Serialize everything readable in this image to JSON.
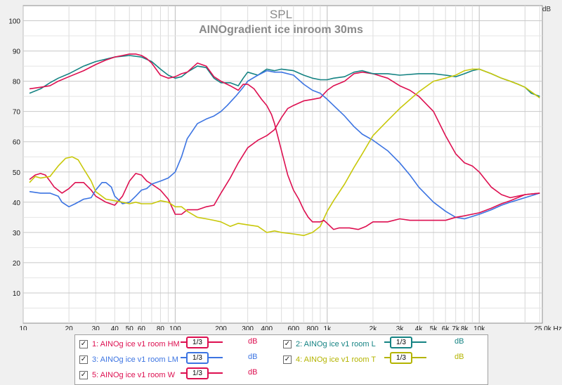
{
  "chart_data": {
    "type": "line",
    "title": "SPL",
    "subtitle": "AINOgradient ice inroom 30ms",
    "ylabel": "dB",
    "xlabel": "",
    "x_scale": "log",
    "xlim": [
      10,
      26000
    ],
    "ylim": [
      0,
      105
    ],
    "grid": true,
    "yticks": [
      10,
      20,
      30,
      40,
      50,
      60,
      70,
      80,
      90,
      100
    ],
    "xtick_values": [
      10,
      20,
      30,
      40,
      50,
      60,
      80,
      100,
      200,
      300,
      400,
      600,
      800,
      1000,
      2000,
      3000,
      4000,
      5000,
      6000,
      7000,
      8000,
      10000,
      25000
    ],
    "xtick_labels": [
      "10",
      "20",
      "30",
      "40",
      "50",
      "60",
      "80",
      "100",
      "200",
      "300",
      "400",
      "600",
      "800",
      "1k",
      "2k",
      "3k",
      "4k",
      "5k",
      "6k",
      "7k",
      "8k",
      "10k",
      "25,0k Hz"
    ],
    "series": [
      {
        "name": "1: AINOg ice v1 room HM",
        "color": "#dd0f50",
        "points": [
          [
            11,
            47.5
          ],
          [
            12,
            49
          ],
          [
            13,
            49.5
          ],
          [
            14,
            49
          ],
          [
            15,
            47
          ],
          [
            16,
            45
          ],
          [
            18,
            43
          ],
          [
            20,
            44.5
          ],
          [
            22,
            46.5
          ],
          [
            25,
            46.5
          ],
          [
            28,
            44
          ],
          [
            30,
            42
          ],
          [
            35,
            40
          ],
          [
            40,
            39
          ],
          [
            45,
            42
          ],
          [
            50,
            47
          ],
          [
            55,
            49.5
          ],
          [
            60,
            49
          ],
          [
            65,
            47
          ],
          [
            70,
            46
          ],
          [
            80,
            44
          ],
          [
            90,
            41
          ],
          [
            100,
            36
          ],
          [
            110,
            36
          ],
          [
            120,
            37.5
          ],
          [
            140,
            37.5
          ],
          [
            160,
            38.5
          ],
          [
            180,
            39
          ],
          [
            200,
            43
          ],
          [
            230,
            48
          ],
          [
            260,
            53
          ],
          [
            300,
            58
          ],
          [
            350,
            60.5
          ],
          [
            400,
            62
          ],
          [
            450,
            64
          ],
          [
            500,
            68
          ],
          [
            550,
            71
          ],
          [
            600,
            72
          ],
          [
            700,
            73.5
          ],
          [
            800,
            74
          ],
          [
            900,
            74.5
          ],
          [
            1000,
            77
          ],
          [
            1100,
            78.5
          ],
          [
            1300,
            80
          ],
          [
            1500,
            82.5
          ],
          [
            1700,
            83
          ],
          [
            2000,
            82.5
          ],
          [
            2500,
            81
          ],
          [
            3000,
            78.5
          ],
          [
            3500,
            77
          ],
          [
            4000,
            75
          ],
          [
            5000,
            70
          ],
          [
            6000,
            62
          ],
          [
            7000,
            56
          ],
          [
            8000,
            53
          ],
          [
            9000,
            52
          ],
          [
            10000,
            50
          ],
          [
            12000,
            45
          ],
          [
            14000,
            42.5
          ],
          [
            16000,
            41.5
          ],
          [
            20000,
            42.5
          ],
          [
            25000,
            43
          ]
        ]
      },
      {
        "name": "2: AINOg ice v1 room L",
        "color": "#158383",
        "points": [
          [
            11,
            76
          ],
          [
            13,
            77.5
          ],
          [
            15,
            79.5
          ],
          [
            17,
            81
          ],
          [
            20,
            82.5
          ],
          [
            25,
            85
          ],
          [
            30,
            86.5
          ],
          [
            40,
            88
          ],
          [
            50,
            88.5
          ],
          [
            60,
            88
          ],
          [
            70,
            86.5
          ],
          [
            80,
            84
          ],
          [
            90,
            82
          ],
          [
            100,
            81
          ],
          [
            110,
            81.5
          ],
          [
            120,
            83
          ],
          [
            140,
            85
          ],
          [
            160,
            84.5
          ],
          [
            180,
            81
          ],
          [
            200,
            79.5
          ],
          [
            230,
            79.5
          ],
          [
            260,
            78.5
          ],
          [
            280,
            81
          ],
          [
            300,
            83
          ],
          [
            350,
            82
          ],
          [
            400,
            84
          ],
          [
            450,
            83.5
          ],
          [
            500,
            84
          ],
          [
            600,
            83.5
          ],
          [
            700,
            82
          ],
          [
            800,
            81
          ],
          [
            900,
            80.5
          ],
          [
            1000,
            80.5
          ],
          [
            1100,
            81
          ],
          [
            1300,
            81.5
          ],
          [
            1500,
            83
          ],
          [
            1700,
            83.5
          ],
          [
            2000,
            82.5
          ],
          [
            2500,
            82.5
          ],
          [
            3000,
            82
          ],
          [
            4000,
            82.5
          ],
          [
            5000,
            82.5
          ],
          [
            6000,
            82
          ],
          [
            7000,
            81.5
          ],
          [
            8000,
            82.5
          ],
          [
            9000,
            83.5
          ],
          [
            10000,
            84
          ],
          [
            12000,
            82.5
          ],
          [
            14000,
            81
          ],
          [
            16000,
            80
          ],
          [
            18000,
            79
          ],
          [
            20000,
            78
          ],
          [
            22000,
            76
          ],
          [
            25000,
            75
          ]
        ]
      },
      {
        "name": "3: AINOg ice v1 room LM",
        "color": "#3c74e2",
        "points": [
          [
            11,
            43.5
          ],
          [
            13,
            43
          ],
          [
            15,
            43
          ],
          [
            17,
            42
          ],
          [
            18,
            40
          ],
          [
            20,
            38.5
          ],
          [
            22,
            39.5
          ],
          [
            25,
            41
          ],
          [
            28,
            41.5
          ],
          [
            30,
            44
          ],
          [
            33,
            46.5
          ],
          [
            35,
            46.5
          ],
          [
            38,
            45
          ],
          [
            40,
            42
          ],
          [
            45,
            39.5
          ],
          [
            50,
            40
          ],
          [
            55,
            42
          ],
          [
            60,
            44
          ],
          [
            65,
            44.5
          ],
          [
            70,
            46
          ],
          [
            80,
            47
          ],
          [
            90,
            48
          ],
          [
            100,
            50
          ],
          [
            110,
            55
          ],
          [
            120,
            61
          ],
          [
            140,
            66
          ],
          [
            160,
            67.5
          ],
          [
            180,
            68.5
          ],
          [
            200,
            70
          ],
          [
            220,
            72
          ],
          [
            250,
            75
          ],
          [
            280,
            78
          ],
          [
            300,
            80
          ],
          [
            350,
            82
          ],
          [
            400,
            83.5
          ],
          [
            450,
            83
          ],
          [
            500,
            83
          ],
          [
            600,
            82
          ],
          [
            700,
            79
          ],
          [
            800,
            77
          ],
          [
            900,
            76
          ],
          [
            1000,
            74
          ],
          [
            1100,
            72
          ],
          [
            1300,
            68.5
          ],
          [
            1500,
            65
          ],
          [
            1700,
            62.5
          ],
          [
            2000,
            60.5
          ],
          [
            2500,
            57
          ],
          [
            3000,
            53
          ],
          [
            3500,
            49
          ],
          [
            4000,
            45
          ],
          [
            5000,
            40
          ],
          [
            6000,
            37
          ],
          [
            7000,
            35
          ],
          [
            8000,
            34.5
          ],
          [
            10000,
            36
          ],
          [
            12000,
            37.5
          ],
          [
            14000,
            39
          ],
          [
            16000,
            40
          ],
          [
            20000,
            41.5
          ],
          [
            25000,
            43
          ]
        ]
      },
      {
        "name": "4: AINOg ice v1 room T",
        "color": "#c8c80a",
        "points": [
          [
            11,
            46.5
          ],
          [
            12,
            48.5
          ],
          [
            13,
            48
          ],
          [
            15,
            48.5
          ],
          [
            17,
            52
          ],
          [
            19,
            54.5
          ],
          [
            21,
            55
          ],
          [
            23,
            54
          ],
          [
            25,
            51
          ],
          [
            28,
            47
          ],
          [
            30,
            43.5
          ],
          [
            35,
            41
          ],
          [
            40,
            40.5
          ],
          [
            45,
            40
          ],
          [
            50,
            39.5
          ],
          [
            55,
            40
          ],
          [
            60,
            39.5
          ],
          [
            70,
            39.5
          ],
          [
            80,
            40.5
          ],
          [
            90,
            40
          ],
          [
            100,
            38.5
          ],
          [
            110,
            38.5
          ],
          [
            120,
            37
          ],
          [
            140,
            35
          ],
          [
            160,
            34.5
          ],
          [
            180,
            34
          ],
          [
            200,
            33.5
          ],
          [
            230,
            32
          ],
          [
            260,
            33
          ],
          [
            300,
            32.5
          ],
          [
            350,
            32
          ],
          [
            400,
            30
          ],
          [
            450,
            30.5
          ],
          [
            500,
            30
          ],
          [
            600,
            29.5
          ],
          [
            700,
            29
          ],
          [
            800,
            30
          ],
          [
            900,
            32
          ],
          [
            1000,
            37
          ],
          [
            1100,
            40.5
          ],
          [
            1300,
            46
          ],
          [
            1500,
            51.5
          ],
          [
            1700,
            56
          ],
          [
            2000,
            62
          ],
          [
            2500,
            67
          ],
          [
            3000,
            71
          ],
          [
            4000,
            76.5
          ],
          [
            5000,
            80
          ],
          [
            6000,
            81
          ],
          [
            7000,
            82
          ],
          [
            8000,
            83.5
          ],
          [
            9000,
            84
          ],
          [
            10000,
            84
          ],
          [
            12000,
            82.5
          ],
          [
            14000,
            81
          ],
          [
            16000,
            80
          ],
          [
            18000,
            79
          ],
          [
            20000,
            78
          ],
          [
            22000,
            76.5
          ],
          [
            25000,
            74.5
          ]
        ]
      },
      {
        "name": "5: AINOg ice v1 room W",
        "color": "#dd0f50",
        "points": [
          [
            11,
            77.5
          ],
          [
            13,
            78
          ],
          [
            15,
            78.5
          ],
          [
            17,
            80
          ],
          [
            20,
            81.5
          ],
          [
            25,
            83.5
          ],
          [
            30,
            85.5
          ],
          [
            35,
            87
          ],
          [
            40,
            88
          ],
          [
            45,
            88.5
          ],
          [
            50,
            89
          ],
          [
            55,
            89
          ],
          [
            60,
            88.5
          ],
          [
            65,
            87.5
          ],
          [
            70,
            86
          ],
          [
            80,
            82
          ],
          [
            90,
            81
          ],
          [
            100,
            81.5
          ],
          [
            110,
            82.5
          ],
          [
            120,
            83
          ],
          [
            140,
            86
          ],
          [
            160,
            85
          ],
          [
            180,
            81.5
          ],
          [
            200,
            80
          ],
          [
            230,
            78.5
          ],
          [
            260,
            77
          ],
          [
            280,
            79
          ],
          [
            300,
            79
          ],
          [
            330,
            77.5
          ],
          [
            370,
            74
          ],
          [
            400,
            72
          ],
          [
            430,
            69
          ],
          [
            450,
            66
          ],
          [
            500,
            57
          ],
          [
            550,
            49
          ],
          [
            600,
            44
          ],
          [
            650,
            41
          ],
          [
            700,
            37.5
          ],
          [
            750,
            35
          ],
          [
            800,
            33.5
          ],
          [
            850,
            33.5
          ],
          [
            900,
            33.5
          ],
          [
            950,
            34
          ],
          [
            1000,
            33
          ],
          [
            1100,
            31
          ],
          [
            1200,
            31.5
          ],
          [
            1400,
            31.5
          ],
          [
            1600,
            31
          ],
          [
            1800,
            32
          ],
          [
            2000,
            33.5
          ],
          [
            2500,
            33.5
          ],
          [
            3000,
            34.5
          ],
          [
            3500,
            34
          ],
          [
            4000,
            34
          ],
          [
            5000,
            34
          ],
          [
            6000,
            34
          ],
          [
            7000,
            35
          ],
          [
            8000,
            35.5
          ],
          [
            10000,
            36.5
          ],
          [
            12000,
            38
          ],
          [
            14000,
            39.5
          ],
          [
            16000,
            40.5
          ],
          [
            20000,
            42.5
          ],
          [
            25000,
            43
          ]
        ]
      }
    ]
  },
  "legend": {
    "items": [
      {
        "name": "1: AINOg ice v1 room HM",
        "smoothing": "1/3",
        "unit": "dB",
        "color": "#dd0f50",
        "checked": "✓"
      },
      {
        "name": "2: AINOg ice v1 room L",
        "smoothing": "1/3",
        "unit": "dB",
        "color": "#158383",
        "checked": "✓"
      },
      {
        "name": "3: AINOg ice v1 room LM",
        "smoothing": "1/3",
        "unit": "dB",
        "color": "#3c74e2",
        "checked": "✓"
      },
      {
        "name": "4: AINOg ice v1 room T",
        "smoothing": "1/3",
        "unit": "dB",
        "color": "#b4b400",
        "checked": "✓"
      },
      {
        "name": "5: AINOg ice v1 room W",
        "smoothing": "1/3",
        "unit": "dB",
        "color": "#dd0f50",
        "checked": "✓"
      }
    ]
  }
}
